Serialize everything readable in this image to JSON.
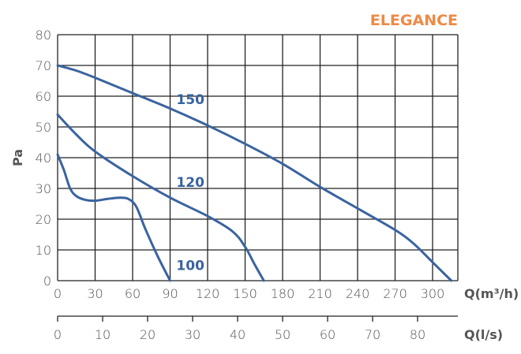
{
  "brand": {
    "title": "ELEGANCE",
    "color": "#EE8A45"
  },
  "curve_color": "#3A63A0",
  "grid_color": "#222222",
  "chart_data": {
    "type": "line",
    "title": "ELEGANCE",
    "xlabel": "Q(m³/h)",
    "xlabel_secondary": "Q(l/s)",
    "ylabel": "Pa",
    "xlim": [
      0,
      320
    ],
    "ylim": [
      0,
      80
    ],
    "grid": true,
    "x_ticks": [
      0,
      30,
      60,
      90,
      120,
      150,
      180,
      210,
      240,
      270,
      300
    ],
    "x_ticks_secondary": [
      0,
      10,
      20,
      30,
      40,
      50,
      60,
      70,
      80
    ],
    "y_ticks": [
      0,
      10,
      20,
      30,
      40,
      50,
      60,
      70,
      80
    ],
    "series": [
      {
        "name": "150",
        "label": "150",
        "x": [
          0,
          15,
          30,
          60,
          90,
          120,
          150,
          180,
          210,
          240,
          270,
          285,
          300,
          315
        ],
        "y": [
          70,
          68.3,
          66,
          61,
          56,
          50.5,
          44.5,
          38,
          30.5,
          23.5,
          16.5,
          12,
          6,
          0
        ]
      },
      {
        "name": "120",
        "label": "120",
        "x": [
          0,
          15,
          30,
          60,
          90,
          120,
          140,
          150,
          158,
          165
        ],
        "y": [
          54,
          47.5,
          42,
          34,
          27,
          21,
          16,
          11,
          5,
          0
        ]
      },
      {
        "name": "100",
        "label": "100",
        "x": [
          0,
          5,
          10,
          15,
          22,
          30,
          40,
          50,
          57,
          63,
          70,
          80,
          90
        ],
        "y": [
          41,
          36,
          30,
          27.5,
          26.3,
          26,
          26.6,
          27,
          26.5,
          24,
          17,
          8,
          0
        ]
      }
    ],
    "annotations": [
      {
        "text": "150",
        "x": 95,
        "y": 59
      },
      {
        "text": "120",
        "x": 95,
        "y": 32
      },
      {
        "text": "100",
        "x": 95,
        "y": 5
      }
    ]
  }
}
